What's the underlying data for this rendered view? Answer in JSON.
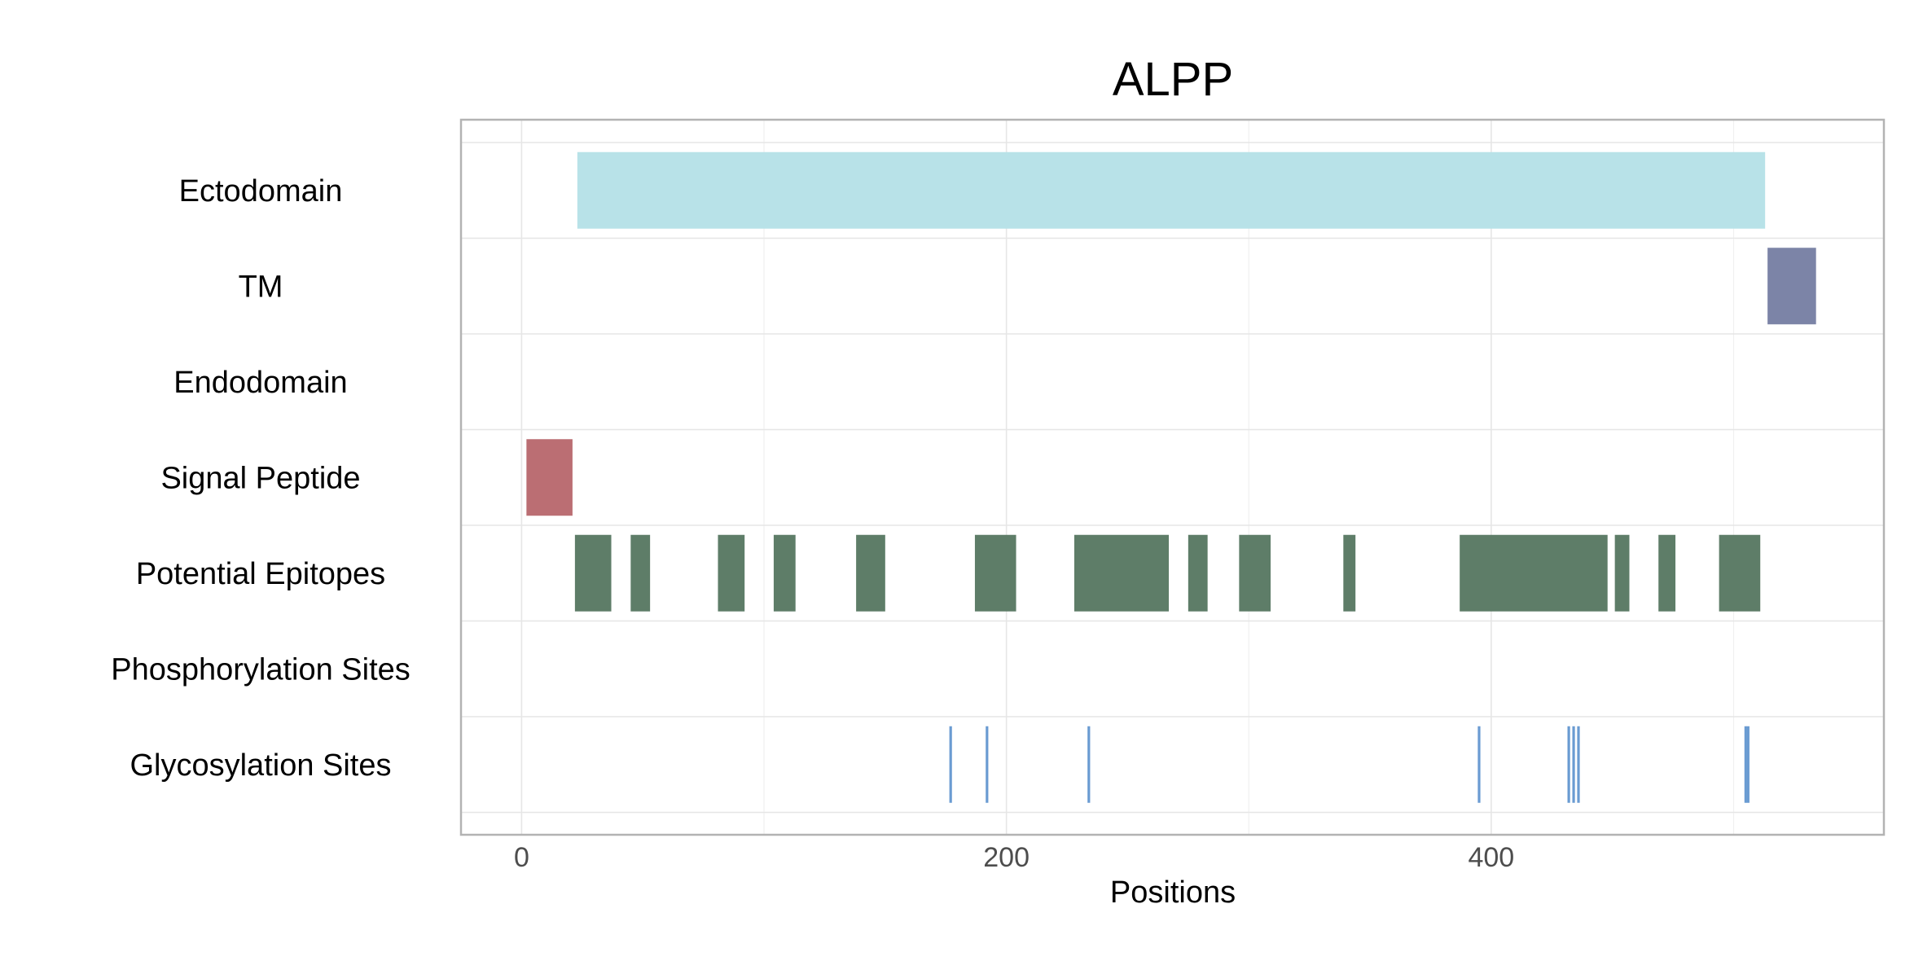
{
  "chart_data": {
    "type": "bar",
    "title": "ALPP",
    "xlabel": "Positions",
    "ylabel": "",
    "xlim": [
      -25,
      562
    ],
    "x_ticks": [
      0,
      200,
      400
    ],
    "x_minor_ticks": [
      100,
      300,
      500
    ],
    "grid": true,
    "rows": [
      "Ectodomain",
      "TM",
      "Endodomain",
      "Signal Peptide",
      "Potential Epitopes",
      "Phosphorylation Sites",
      "Glycosylation Sites"
    ],
    "series": [
      {
        "name": "Ectodomain",
        "color": "#b8e2e8",
        "segments": [
          [
            23,
            513
          ]
        ]
      },
      {
        "name": "TM",
        "color": "#7c84a7",
        "segments": [
          [
            514,
            534
          ]
        ]
      },
      {
        "name": "Endodomain",
        "color": "#cccccc",
        "segments": []
      },
      {
        "name": "Signal Peptide",
        "color": "#bb6e73",
        "segments": [
          [
            2,
            21
          ]
        ]
      },
      {
        "name": "Potential Epitopes",
        "color": "#5e7d68",
        "segments": [
          [
            22,
            37
          ],
          [
            45,
            53
          ],
          [
            81,
            92
          ],
          [
            104,
            113
          ],
          [
            138,
            150
          ],
          [
            187,
            204
          ],
          [
            228,
            267
          ],
          [
            275,
            283
          ],
          [
            296,
            309
          ],
          [
            339,
            344
          ],
          [
            387,
            448
          ],
          [
            451,
            457
          ],
          [
            469,
            476
          ],
          [
            494,
            511
          ]
        ]
      },
      {
        "name": "Phosphorylation Sites",
        "color": "#6a9bd2",
        "positions": []
      },
      {
        "name": "Glycosylation Sites",
        "color": "#6a9bd2",
        "positions": [
          177,
          192,
          234,
          395,
          432,
          434,
          436,
          505,
          506
        ]
      }
    ]
  }
}
